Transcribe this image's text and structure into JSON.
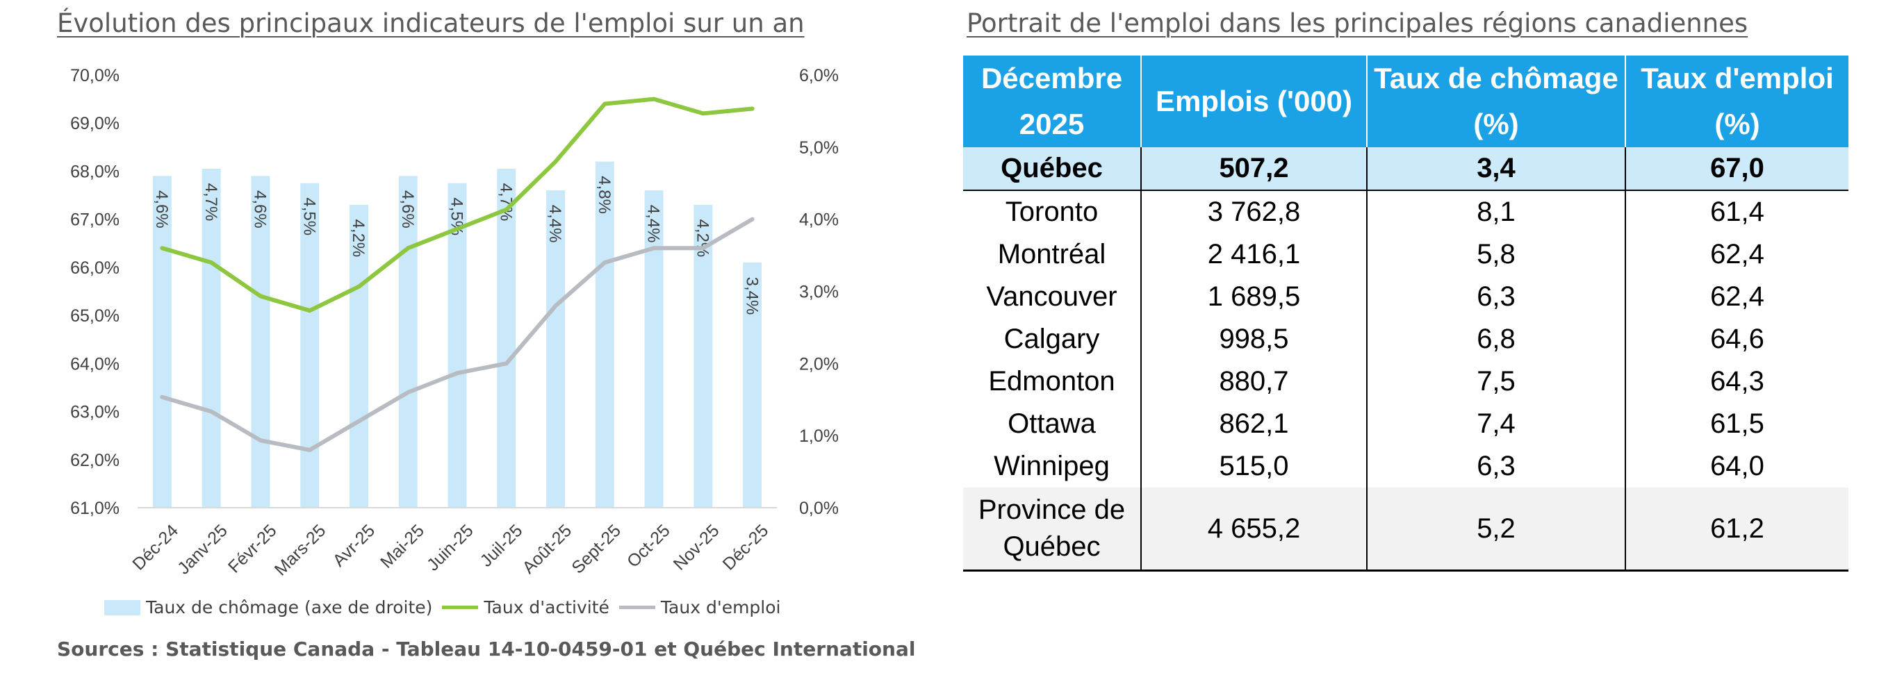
{
  "chart_data": {
    "type": "bar+line",
    "title": "Évolution des principaux indicateurs de l'emploi sur un an",
    "categories": [
      "Déc-24",
      "Janv-25",
      "Févr-25",
      "Mars-25",
      "Avr-25",
      "Mai-25",
      "Juin-25",
      "Juil-25",
      "Août-25",
      "Sept-25",
      "Oct-25",
      "Nov-25",
      "Déc-25"
    ],
    "left_axis": {
      "ylim": [
        61.0,
        70.0
      ],
      "ticks": [
        "61,0%",
        "62,0%",
        "63,0%",
        "64,0%",
        "65,0%",
        "66,0%",
        "67,0%",
        "68,0%",
        "69,0%",
        "70,0%"
      ]
    },
    "right_axis": {
      "ylim": [
        0.0,
        6.0
      ],
      "ticks": [
        "0,0%",
        "1,0%",
        "2,0%",
        "3,0%",
        "4,0%",
        "5,0%",
        "6,0%"
      ]
    },
    "series": [
      {
        "name": "Taux de chômage (axe de droite)",
        "kind": "bar",
        "axis": "right",
        "color": "#c9e8f9",
        "values": [
          4.6,
          4.7,
          4.6,
          4.5,
          4.2,
          4.6,
          4.5,
          4.7,
          4.4,
          4.8,
          4.4,
          4.2,
          3.4
        ],
        "labels": [
          "4,6%",
          "4,7%",
          "4,6%",
          "4,5%",
          "4,2%",
          "4,6%",
          "4,5%",
          "4,7%",
          "4,4%",
          "4,8%",
          "4,4%",
          "4,2%",
          "3,4%"
        ]
      },
      {
        "name": "Taux d'activité",
        "kind": "line",
        "axis": "left",
        "color": "#8dc63f",
        "values": [
          66.4,
          66.1,
          65.4,
          65.1,
          65.6,
          66.4,
          66.8,
          67.2,
          68.2,
          69.4,
          69.5,
          69.2,
          69.3
        ]
      },
      {
        "name": "Taux d'emploi",
        "kind": "line",
        "axis": "left",
        "color": "#b8bcc2",
        "values": [
          63.3,
          63.0,
          62.4,
          62.2,
          62.8,
          63.4,
          63.8,
          64.0,
          65.2,
          66.1,
          66.4,
          66.4,
          67.0
        ]
      }
    ],
    "legend_position": "bottom",
    "grid": false
  },
  "legend": {
    "bar_label": "Taux de chômage (axe de droite)",
    "line1_label": "Taux d'activité",
    "line2_label": "Taux d'emploi"
  },
  "source": "Sources : Statistique Canada - Tableau 14-10-0459-01 et Québec International",
  "table": {
    "title": "Portrait de l'emploi dans les principales régions canadiennes",
    "headers": [
      "Décembre 2025",
      "Emplois ('000)",
      "Taux de chômage (%)",
      "Taux d'emploi (%)"
    ],
    "rows": [
      {
        "region": "Québec",
        "emplois": "507,2",
        "chomage": "3,4",
        "emploi": "67,0"
      },
      {
        "region": "Toronto",
        "emplois": "3 762,8",
        "chomage": "8,1",
        "emploi": "61,4"
      },
      {
        "region": "Montréal",
        "emplois": "2 416,1",
        "chomage": "5,8",
        "emploi": "62,4"
      },
      {
        "region": "Vancouver",
        "emplois": "1 689,5",
        "chomage": "6,3",
        "emploi": "62,4"
      },
      {
        "region": "Calgary",
        "emplois": "998,5",
        "chomage": "6,8",
        "emploi": "64,6"
      },
      {
        "region": "Edmonton",
        "emplois": "880,7",
        "chomage": "7,5",
        "emploi": "64,3"
      },
      {
        "region": "Ottawa",
        "emplois": "862,1",
        "chomage": "7,4",
        "emploi": "61,5"
      },
      {
        "region": "Winnipeg",
        "emplois": "515,0",
        "chomage": "6,3",
        "emploi": "64,0"
      },
      {
        "region": "Province de Québec",
        "emplois": "4 655,2",
        "chomage": "5,2",
        "emploi": "61,2"
      }
    ]
  }
}
